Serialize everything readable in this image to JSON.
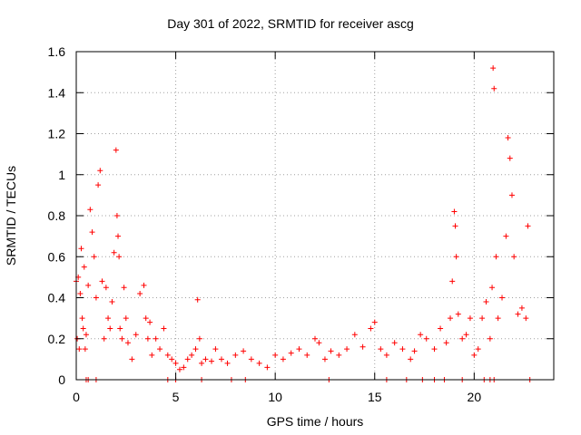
{
  "chart_data": {
    "type": "scatter",
    "title": "Day 301 of 2022, SRMTID for receiver ascg",
    "xlabel": "GPS time / hours",
    "ylabel": "SRMTID / TECUs",
    "xlim": [
      0,
      24
    ],
    "ylim": [
      0,
      1.6
    ],
    "xticks": [
      0,
      5,
      10,
      15,
      20
    ],
    "yticks": [
      0,
      0.2,
      0.4,
      0.6,
      0.8,
      1,
      1.2,
      1.4,
      1.6
    ],
    "xtick_labels": [
      "0",
      "5",
      "10",
      "15",
      "20"
    ],
    "ytick_labels": [
      "0",
      "0.2",
      "0.4",
      "0.6",
      "0.8",
      "1",
      "1.2",
      "1.4",
      "1.6"
    ],
    "grid": true,
    "marker": "+",
    "series": [
      {
        "name": "SRMTID",
        "color": "#ff0000",
        "x": [
          0.0,
          0.05,
          0.1,
          0.15,
          0.2,
          0.25,
          0.3,
          0.35,
          0.4,
          0.45,
          0.5,
          0.6,
          0.7,
          0.8,
          0.9,
          1.0,
          1.1,
          1.2,
          1.3,
          1.4,
          1.5,
          1.6,
          1.7,
          1.8,
          1.9,
          2.0,
          2.05,
          2.1,
          2.15,
          2.2,
          2.3,
          2.4,
          2.5,
          2.6,
          2.8,
          3.0,
          3.2,
          3.4,
          3.5,
          3.6,
          3.7,
          3.8,
          4.0,
          4.2,
          4.4,
          4.6,
          4.8,
          5.0,
          5.2,
          5.4,
          5.6,
          5.8,
          6.0,
          6.1,
          6.2,
          6.3,
          6.5,
          6.8,
          7.0,
          7.3,
          7.6,
          8.0,
          8.4,
          8.8,
          9.2,
          9.6,
          10.0,
          10.4,
          10.8,
          11.2,
          11.6,
          12.0,
          12.2,
          12.5,
          12.8,
          13.2,
          13.6,
          14.0,
          14.4,
          14.8,
          15.0,
          15.3,
          15.6,
          16.0,
          16.4,
          16.8,
          17.0,
          17.3,
          17.6,
          18.0,
          18.3,
          18.6,
          18.8,
          18.9,
          19.0,
          19.05,
          19.1,
          19.2,
          19.4,
          19.6,
          19.8,
          20.0,
          20.2,
          20.4,
          20.6,
          20.8,
          20.9,
          20.95,
          21.0,
          21.1,
          21.2,
          21.4,
          21.6,
          21.7,
          21.8,
          21.9,
          22.0,
          22.2,
          22.4,
          22.6,
          22.7,
          0.5,
          0.6,
          1.0,
          4.6,
          5.0,
          6.3,
          7.8,
          8.5,
          12.7,
          15.6,
          16.6,
          17.4,
          18.0,
          18.5,
          19.4,
          20.5,
          20.8,
          21.0,
          22.8
        ],
        "y": [
          0.48,
          0.2,
          0.5,
          0.15,
          0.42,
          0.64,
          0.3,
          0.25,
          0.55,
          0.15,
          0.22,
          0.46,
          0.83,
          0.72,
          0.6,
          0.4,
          0.95,
          1.02,
          0.48,
          0.2,
          0.45,
          0.3,
          0.25,
          0.38,
          0.62,
          1.12,
          0.8,
          0.7,
          0.6,
          0.25,
          0.2,
          0.45,
          0.3,
          0.18,
          0.1,
          0.22,
          0.42,
          0.46,
          0.3,
          0.2,
          0.28,
          0.12,
          0.2,
          0.15,
          0.25,
          0.12,
          0.1,
          0.08,
          0.05,
          0.06,
          0.1,
          0.12,
          0.15,
          0.39,
          0.2,
          0.08,
          0.1,
          0.09,
          0.15,
          0.1,
          0.08,
          0.12,
          0.14,
          0.1,
          0.08,
          0.06,
          0.12,
          0.1,
          0.13,
          0.15,
          0.12,
          0.2,
          0.18,
          0.1,
          0.14,
          0.12,
          0.15,
          0.22,
          0.16,
          0.25,
          0.28,
          0.15,
          0.12,
          0.18,
          0.15,
          0.1,
          0.14,
          0.22,
          0.2,
          0.15,
          0.25,
          0.18,
          0.3,
          0.48,
          0.82,
          0.75,
          0.6,
          0.32,
          0.2,
          0.22,
          0.3,
          0.12,
          0.15,
          0.3,
          0.38,
          0.2,
          0.45,
          1.52,
          1.42,
          0.6,
          0.3,
          0.4,
          0.7,
          1.18,
          1.08,
          0.9,
          0.6,
          0.32,
          0.35,
          0.3,
          0.75,
          0.0,
          0.0,
          0.0,
          0.0,
          0.0,
          0.0,
          0.0,
          0.0,
          0.0,
          0.0,
          0.0,
          0.0,
          0.0,
          0.0,
          0.0,
          0.0,
          0.0,
          0.0,
          0.0
        ]
      }
    ]
  }
}
